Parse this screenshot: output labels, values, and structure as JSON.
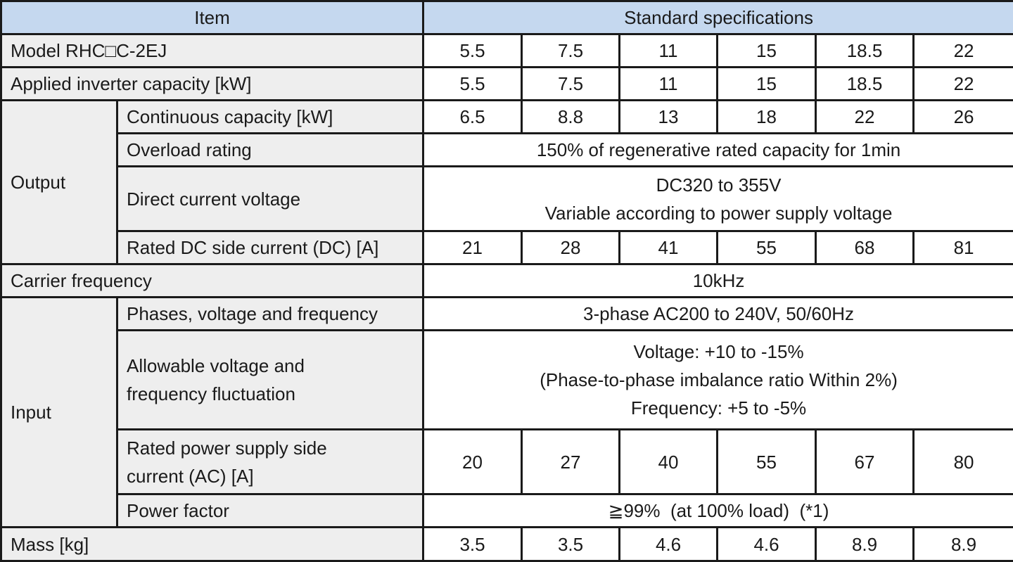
{
  "header": {
    "item": "Item",
    "specs": "Standard specifications"
  },
  "rows": {
    "model": {
      "label": "Model RHC□C-2EJ",
      "values": [
        "5.5",
        "7.5",
        "11",
        "15",
        "18.5",
        "22"
      ]
    },
    "applied": {
      "label": "Applied inverter capacity [kW]",
      "values": [
        "5.5",
        "7.5",
        "11",
        "15",
        "18.5",
        "22"
      ]
    },
    "output": {
      "group": "Output",
      "continuous": {
        "label": "Continuous capacity [kW]",
        "values": [
          "6.5",
          "8.8",
          "13",
          "18",
          "22",
          "26"
        ]
      },
      "overload": {
        "label": "Overload rating",
        "value": "150% of regenerative rated capacity for 1min"
      },
      "dc_voltage": {
        "label": "Direct current voltage",
        "line1": "DC320 to 355V",
        "line2": "Variable according to power supply voltage"
      },
      "dc_current": {
        "label": "Rated DC side current (DC) [A]",
        "values": [
          "21",
          "28",
          "41",
          "55",
          "68",
          "81"
        ]
      }
    },
    "carrier": {
      "label": "Carrier frequency",
      "value": "10kHz"
    },
    "input": {
      "group": "Input",
      "phases": {
        "label": "Phases, voltage and frequency",
        "value": "3-phase AC200 to 240V, 50/60Hz"
      },
      "fluct": {
        "label1": "Allowable voltage and",
        "label2": "frequency fluctuation",
        "line1": "Voltage: +10 to -15%",
        "line2": "(Phase-to-phase imbalance ratio Within 2%)",
        "line3": "Frequency: +5 to -5%"
      },
      "ac_current": {
        "label1": "Rated power supply side",
        "label2": "current (AC) [A]",
        "values": [
          "20",
          "27",
          "40",
          "55",
          "67",
          "80"
        ]
      },
      "pf": {
        "label": "Power factor",
        "value": "≧99%  (at 100% load)  (*1)"
      }
    },
    "mass": {
      "label": "Mass [kg]",
      "values": [
        "3.5",
        "3.5",
        "4.6",
        "4.6",
        "8.9",
        "8.9"
      ]
    }
  }
}
